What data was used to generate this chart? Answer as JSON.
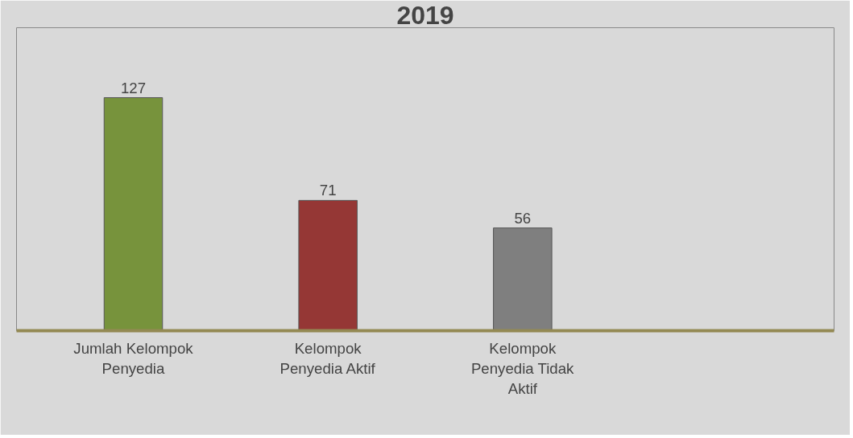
{
  "chart_data": {
    "type": "bar",
    "title": "2019",
    "categories": [
      "Jumlah Kelompok Penyedia",
      "Kelompok Penyedia Aktif",
      "Kelompok Penyedia Tidak Aktif"
    ],
    "values": [
      127,
      71,
      56
    ],
    "colors": [
      "#77933c",
      "#953735",
      "#7f7f7f"
    ],
    "data_labels": true
  }
}
